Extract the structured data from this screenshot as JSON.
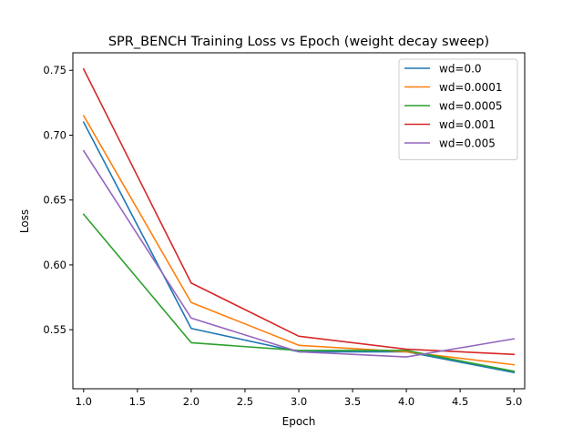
{
  "chart_data": {
    "type": "line",
    "title": "SPR_BENCH Training Loss vs Epoch (weight decay sweep)",
    "xlabel": "Epoch",
    "ylabel": "Loss",
    "xlim": [
      0.9,
      5.1
    ],
    "ylim": [
      0.5045,
      0.7635
    ],
    "xticks": [
      1.0,
      1.5,
      2.0,
      2.5,
      3.0,
      3.5,
      4.0,
      4.5,
      5.0
    ],
    "xtick_labels": [
      "1.0",
      "1.5",
      "2.0",
      "2.5",
      "3.0",
      "3.5",
      "4.0",
      "4.5",
      "5.0"
    ],
    "yticks": [
      0.55,
      0.6,
      0.65,
      0.7,
      0.75
    ],
    "ytick_labels": [
      "0.55",
      "0.60",
      "0.65",
      "0.70",
      "0.75"
    ],
    "grid": false,
    "legend_position": "top-right",
    "x": [
      1,
      2,
      3,
      4,
      5
    ],
    "series": [
      {
        "name": "wd=0.0",
        "color": "#1f77b4",
        "values": [
          0.71,
          0.551,
          0.533,
          0.533,
          0.517
        ]
      },
      {
        "name": "wd=0.0001",
        "color": "#ff7f0e",
        "values": [
          0.715,
          0.571,
          0.538,
          0.533,
          0.523
        ]
      },
      {
        "name": "wd=0.0005",
        "color": "#2ca02c",
        "values": [
          0.639,
          0.54,
          0.534,
          0.534,
          0.518
        ]
      },
      {
        "name": "wd=0.001",
        "color": "#d62728",
        "values": [
          0.751,
          0.586,
          0.545,
          0.535,
          0.531
        ]
      },
      {
        "name": "wd=0.005",
        "color": "#9467bd",
        "values": [
          0.688,
          0.559,
          0.533,
          0.529,
          0.543
        ]
      }
    ]
  }
}
